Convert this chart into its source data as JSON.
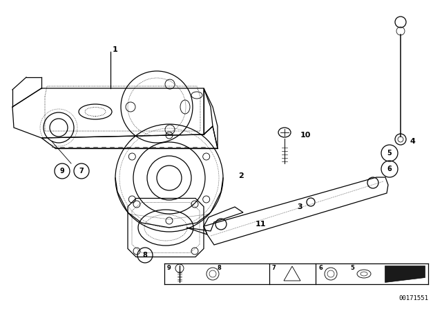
{
  "bg_color": "#ffffff",
  "line_color": "#000000",
  "diagram_number": "00171551",
  "figsize": [
    6.4,
    4.48
  ],
  "dpi": 100
}
